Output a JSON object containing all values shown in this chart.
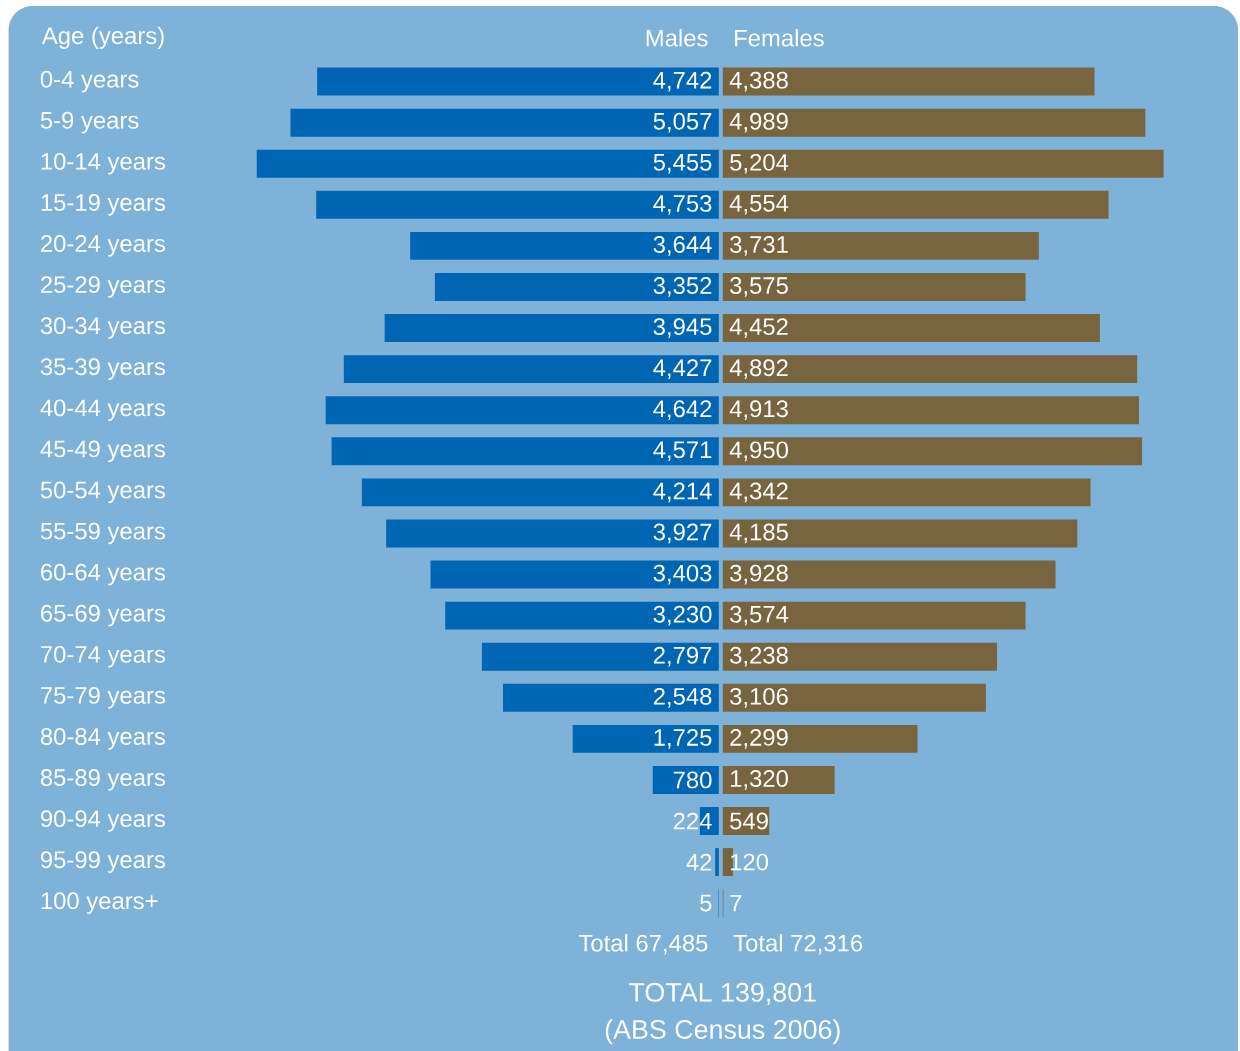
{
  "chart_data": [
    {
      "type": "bar",
      "orientation": "horizontal",
      "title": "Males",
      "ylabel": "Age (years)",
      "tick_labels": "y",
      "categories": [
        "0-4 years",
        "5-9 years",
        "10-14 years",
        "15-19 years",
        "20-24 years",
        "25-29 years",
        "30-34 years",
        "35-39 years",
        "40-44 years",
        "45-49 years",
        "50-54 years",
        "55-59 years",
        "60-64 years",
        "65-69 years",
        "70-74 years",
        "75-79 years",
        "80-84 years",
        "85-89 years",
        "90-94 years",
        "95-99 years",
        "100 years+"
      ],
      "series": [
        {
          "color": "#0066b3",
          "values": [
            4742,
            5057,
            5455,
            4753,
            3644,
            3352,
            3945,
            4427,
            4642,
            4571,
            4214,
            3927,
            3403,
            3230,
            2797,
            2548,
            1725,
            780,
            224,
            42,
            5
          ],
          "value_labels": [
            "4,742",
            "5,057",
            "5,455",
            "4,753",
            "3,644",
            "3,352",
            "3,945",
            "4,427",
            "4,642",
            "4,571",
            "4,214",
            "3,927",
            "3,403",
            "3,230",
            "2,797",
            "2,548",
            "1,725",
            "780",
            "224",
            "42",
            "5"
          ]
        }
      ],
      "annotations": [
        "Total 67,485",
        "TOTAL 139,801",
        "(ABS Census 2006)"
      ]
    },
    {
      "type": "bar",
      "orientation": "horizontal",
      "title": "Females",
      "tick_labels": false,
      "categories": [
        null,
        null,
        null,
        null,
        null,
        null,
        null,
        null,
        null,
        null,
        null,
        null,
        null,
        null,
        null,
        null,
        null,
        null,
        null,
        null,
        null
      ],
      "series": [
        {
          "color": "#78643f",
          "values": [
            4388,
            4989,
            5204,
            4554,
            3731,
            3575,
            4452,
            4892,
            4913,
            4950,
            4342,
            4185,
            3928,
            3574,
            3238,
            3106,
            2299,
            1320,
            549,
            120,
            7
          ],
          "value_labels": [
            "4,388",
            "4,989",
            "5,204",
            "4,554",
            "3,731",
            "3,575",
            "4,452",
            "4,892",
            "4,913",
            "4,950",
            "4,342",
            "4,185",
            "3,928",
            "3,574",
            "3,238",
            "3,106",
            "2,299",
            "1,320",
            "549",
            "120",
            "7"
          ]
        }
      ],
      "annotations": [
        "Total 72,316"
      ]
    }
  ]
}
